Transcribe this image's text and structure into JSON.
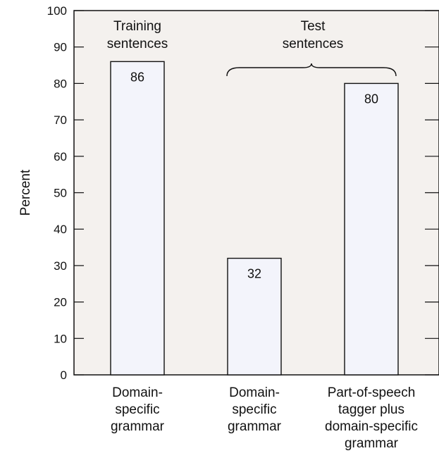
{
  "chart_data": {
    "type": "bar",
    "ylabel": "Percent",
    "ylim": [
      0,
      100
    ],
    "yticks": [
      0,
      10,
      20,
      30,
      40,
      50,
      60,
      70,
      80,
      90,
      100
    ],
    "categories": [
      [
        "Domain-",
        "specific",
        "grammar"
      ],
      [
        "Domain-",
        "specific",
        "grammar"
      ],
      [
        "Part-of-speech",
        "tagger plus",
        "domain-specific",
        "grammar"
      ]
    ],
    "values": [
      86,
      32,
      80
    ],
    "data_labels": [
      "86",
      "32",
      "80"
    ],
    "annotations": [
      {
        "lines": [
          "Training",
          "sentences"
        ],
        "covers": [
          0
        ]
      },
      {
        "lines": [
          "Test",
          "sentences"
        ],
        "covers": [
          1,
          2
        ],
        "brace": true
      }
    ],
    "colors": {
      "plot_bg": "#f4f1ee",
      "bar_fill": "#f3f4fb",
      "axis": "#111111"
    }
  }
}
